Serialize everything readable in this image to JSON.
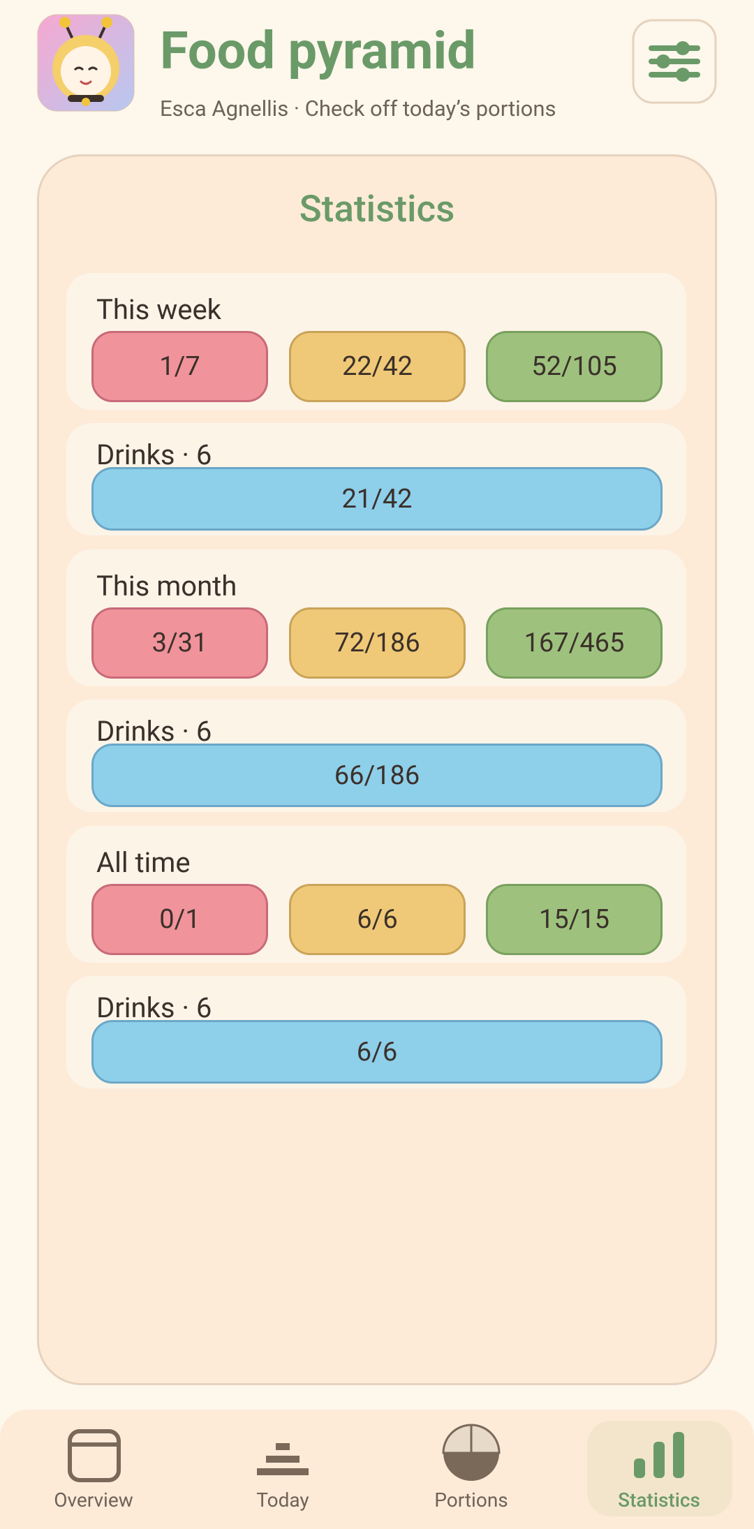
{
  "header": {
    "title": "Food pyramid",
    "subtitle": "Esca Agnellis · Check off today’s portions"
  },
  "stats": {
    "title": "Statistics",
    "sections": [
      {
        "label": "This week",
        "pills": [
          "1/7",
          "22/42",
          "52/105"
        ],
        "drinks_label": "Drinks · 6",
        "drinks_value": "21/42"
      },
      {
        "label": "This month",
        "pills": [
          "3/31",
          "72/186",
          "167/465"
        ],
        "drinks_label": "Drinks · 6",
        "drinks_value": "66/186"
      },
      {
        "label": "All time",
        "pills": [
          "0/1",
          "6/6",
          "15/15"
        ],
        "drinks_label": "Drinks · 6",
        "drinks_value": "6/6"
      }
    ]
  },
  "nav": {
    "items": [
      "Overview",
      "Today",
      "Portions",
      "Statistics"
    ]
  }
}
